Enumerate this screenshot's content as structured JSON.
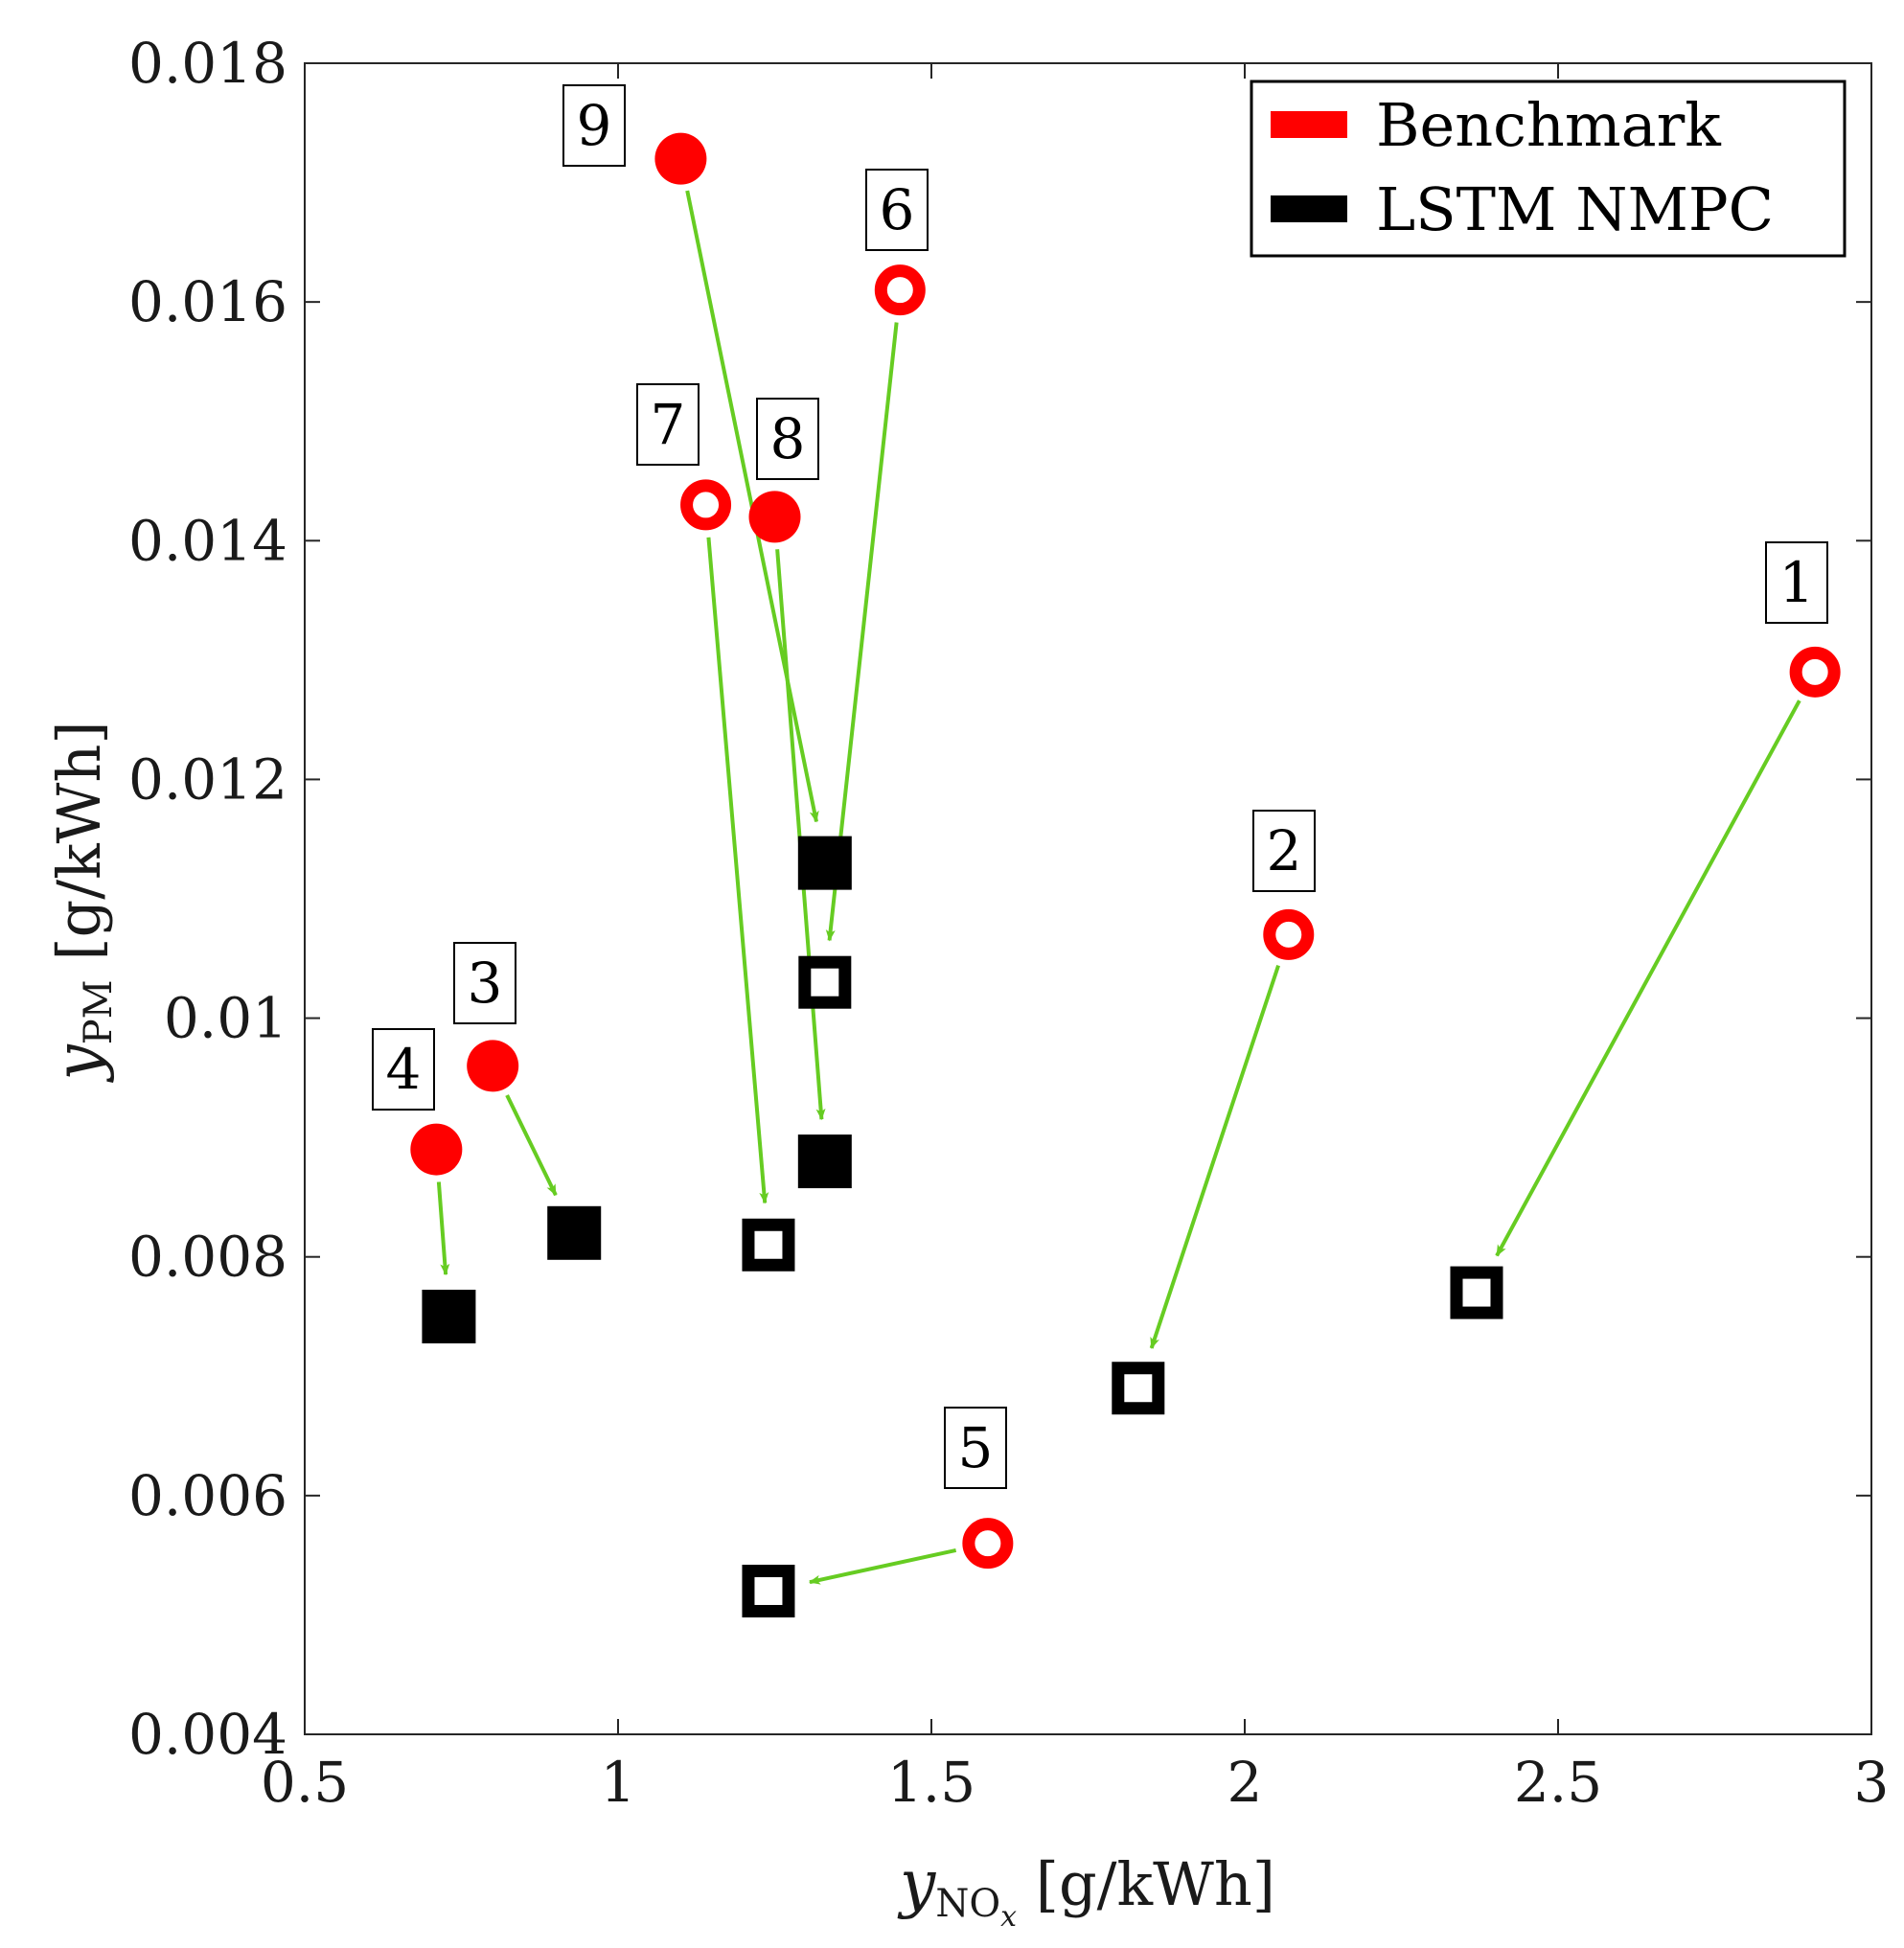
{
  "chart_data": {
    "type": "scatter",
    "title": "",
    "xlabel": {
      "var": "y",
      "sub": "NO",
      "subsub": "x",
      "unit": "[g/kWh]"
    },
    "ylabel": {
      "var": "y",
      "sub": "PM",
      "unit": "[g/kWh]"
    },
    "xlim": [
      0.5,
      3
    ],
    "ylim": [
      0.004,
      0.018
    ],
    "x_ticks": [
      0.5,
      1,
      1.5,
      2,
      2.5,
      3
    ],
    "x_tick_labels": [
      "0.5",
      "1",
      "1.5",
      "2",
      "2.5",
      "3"
    ],
    "y_ticks": [
      0.004,
      0.006,
      0.008,
      0.01,
      0.012,
      0.014,
      0.016,
      0.018
    ],
    "y_tick_labels": [
      "0.004",
      "0.006",
      "0.008",
      "0.01",
      "0.012",
      "0.014",
      "0.016",
      "0.018"
    ],
    "grid": false,
    "legend": {
      "position": "top-right",
      "entries": [
        {
          "label": "Benchmark",
          "color": "#ff0000"
        },
        {
          "label": "LSTM NMPC",
          "color": "#000000"
        }
      ]
    },
    "colors": {
      "benchmark": "#ff0000",
      "nmpc": "#000000",
      "arrow": "#66cc22"
    },
    "points": [
      {
        "id": "1",
        "filled": false,
        "benchmark": {
          "x": 2.91,
          "y": 0.0129
        },
        "nmpc": {
          "x": 2.37,
          "y": 0.0077
        }
      },
      {
        "id": "2",
        "filled": false,
        "benchmark": {
          "x": 2.07,
          "y": 0.0107
        },
        "nmpc": {
          "x": 1.83,
          "y": 0.0069
        }
      },
      {
        "id": "3",
        "filled": true,
        "benchmark": {
          "x": 0.8,
          "y": 0.0096
        },
        "nmpc": {
          "x": 0.93,
          "y": 0.0082
        }
      },
      {
        "id": "4",
        "filled": true,
        "benchmark": {
          "x": 0.71,
          "y": 0.0089
        },
        "nmpc": {
          "x": 0.73,
          "y": 0.0075
        }
      },
      {
        "id": "5",
        "filled": false,
        "benchmark": {
          "x": 1.59,
          "y": 0.0056
        },
        "nmpc": {
          "x": 1.24,
          "y": 0.0052
        }
      },
      {
        "id": "6",
        "filled": false,
        "benchmark": {
          "x": 1.45,
          "y": 0.0161
        },
        "nmpc": {
          "x": 1.33,
          "y": 0.0103
        }
      },
      {
        "id": "7",
        "filled": false,
        "benchmark": {
          "x": 1.14,
          "y": 0.0143
        },
        "nmpc": {
          "x": 1.24,
          "y": 0.0081
        }
      },
      {
        "id": "8",
        "filled": true,
        "benchmark": {
          "x": 1.25,
          "y": 0.0142
        },
        "nmpc": {
          "x": 1.33,
          "y": 0.0088
        }
      },
      {
        "id": "9",
        "filled": true,
        "benchmark": {
          "x": 1.1,
          "y": 0.0172
        },
        "nmpc": {
          "x": 1.33,
          "y": 0.0113
        }
      }
    ]
  }
}
